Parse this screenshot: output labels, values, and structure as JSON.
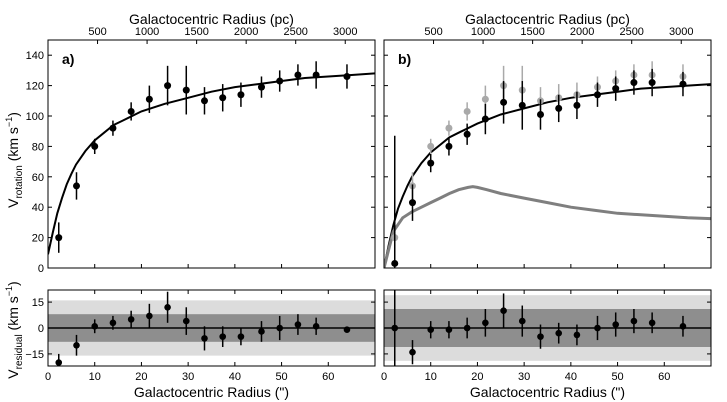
{
  "chart_data": [
    {
      "panel": "a",
      "type": "scatter",
      "panel_label": "a)",
      "top_axis_label": "Galactocentric Radius (pc)",
      "top_ticks": [
        500,
        1000,
        1500,
        2000,
        2500,
        3000
      ],
      "top_tick_labels": [
        "500",
        "1000",
        "1500",
        "2000",
        "2500",
        "3000"
      ],
      "xlabel": "Galactocentric Radius (\")",
      "x_ticks": [
        0,
        10,
        20,
        30,
        40,
        50,
        60
      ],
      "x_tick_labels": [
        "0",
        "10",
        "20",
        "30",
        "40",
        "50",
        "60"
      ],
      "xlim": [
        0,
        70
      ],
      "ylabel_main": "V",
      "ylabel_main_sub": "rotation",
      "ylabel_main_unit": " (km s",
      "ylabel_main_exp": "−1",
      "ylabel_main_close": ")",
      "ylim": [
        0,
        150
      ],
      "y_ticks": [
        0,
        20,
        40,
        60,
        80,
        100,
        120,
        140
      ],
      "y_tick_labels": [
        "0",
        "20",
        "40",
        "60",
        "80",
        "100",
        "120",
        "140"
      ],
      "rotation_series": [
        {
          "name": "observed",
          "color": "#000000",
          "x": [
            2.3,
            6.1,
            10.0,
            13.9,
            17.8,
            21.7,
            25.6,
            29.6,
            33.5,
            37.4,
            41.3,
            45.7,
            49.6,
            53.5,
            57.4,
            64.0
          ],
          "y": [
            20,
            54,
            80,
            92,
            103,
            111,
            120,
            117,
            110,
            112,
            114,
            119,
            123,
            127,
            127,
            126
          ],
          "yerr": [
            10,
            9,
            5,
            5,
            6,
            9,
            13,
            16,
            9,
            9,
            8,
            7,
            7,
            7,
            9,
            8
          ]
        }
      ],
      "model_curves": [
        {
          "name": "fit",
          "color": "#000000",
          "x": [
            0,
            1,
            2,
            3,
            4,
            5,
            6,
            8,
            10,
            12,
            14,
            16,
            20,
            25,
            30,
            35,
            40,
            45,
            50,
            55,
            60,
            65,
            70
          ],
          "y": [
            9,
            23,
            36,
            46,
            55,
            62,
            68,
            77,
            84,
            89,
            94,
            97,
            103,
            108,
            112,
            116,
            119,
            121,
            123,
            125,
            126,
            127,
            128
          ]
        }
      ],
      "residual": {
        "ylabel": "V",
        "ylabel_sub": "residual",
        "ylabel_unit": " (km s",
        "ylabel_exp": "−1",
        "ylabel_close": ")",
        "ylim": [
          -22,
          22
        ],
        "y_ticks": [
          -15,
          0,
          15
        ],
        "y_tick_labels": [
          "−15",
          "0",
          "15"
        ],
        "outer_band": [
          -16,
          16
        ],
        "inner_band": [
          -8,
          8
        ],
        "outer_band_color": "#dcdcdc",
        "inner_band_color": "#8e8e8e",
        "x": [
          2.3,
          6.1,
          10.0,
          13.9,
          17.8,
          21.7,
          25.6,
          29.6,
          33.5,
          37.4,
          41.3,
          45.7,
          49.6,
          53.5,
          57.4,
          64.0
        ],
        "y": [
          -20,
          -10,
          1,
          3,
          5,
          7,
          12,
          4,
          -6,
          -5,
          -5,
          -2,
          0,
          2,
          1,
          -1
        ],
        "yerr": [
          5,
          6,
          4,
          4,
          5,
          7,
          9,
          8,
          7,
          6,
          5,
          6,
          7,
          6,
          5,
          1
        ]
      }
    },
    {
      "panel": "b",
      "type": "scatter",
      "panel_label": "b)",
      "top_axis_label": "Galactocentric Radius (pc)",
      "top_ticks": [
        500,
        1000,
        1500,
        2000,
        2500,
        3000
      ],
      "top_tick_labels": [
        "500",
        "1000",
        "1500",
        "2000",
        "2500",
        "3000"
      ],
      "xlabel": "Galactocentric Radius (\")",
      "x_ticks": [
        0,
        10,
        20,
        30,
        40,
        50,
        60
      ],
      "x_tick_labels": [
        "0",
        "10",
        "20",
        "30",
        "40",
        "50",
        "60"
      ],
      "xlim": [
        0,
        70
      ],
      "ylim": [
        0,
        150
      ],
      "y_ticks": [
        0,
        20,
        40,
        60,
        80,
        100,
        120,
        140
      ],
      "rotation_series": [
        {
          "name": "original (grey)",
          "color": "#a9a9a9",
          "x": [
            2.3,
            6.1,
            10.0,
            13.9,
            17.8,
            21.7,
            25.6,
            29.6,
            33.5,
            37.4,
            41.3,
            45.7,
            49.6,
            53.5,
            57.4,
            64.0
          ],
          "y": [
            20,
            54,
            80,
            92,
            103,
            111,
            120,
            117,
            110,
            112,
            114,
            119,
            123,
            127,
            127,
            126
          ],
          "yerr": [
            10,
            9,
            5,
            5,
            6,
            9,
            13,
            16,
            9,
            9,
            8,
            7,
            7,
            7,
            9,
            8
          ]
        },
        {
          "name": "corrected",
          "color": "#000000",
          "x": [
            2.3,
            6.1,
            10.0,
            13.9,
            17.8,
            21.7,
            25.6,
            29.6,
            33.5,
            37.4,
            41.3,
            45.7,
            49.6,
            53.5,
            57.4,
            64.0
          ],
          "y": [
            3,
            43,
            69,
            80,
            88,
            98,
            109,
            107,
            101,
            105,
            107,
            114,
            118,
            122,
            122,
            121
          ],
          "yerr": [
            84,
            12,
            6,
            6,
            7,
            10,
            14,
            16,
            10,
            9,
            9,
            8,
            8,
            8,
            9,
            8
          ]
        }
      ],
      "model_curves": [
        {
          "name": "fit",
          "color": "#000000",
          "x": [
            0,
            1,
            2,
            3,
            4,
            5,
            6,
            8,
            10,
            12,
            14,
            16,
            20,
            25,
            30,
            35,
            40,
            45,
            50,
            55,
            60,
            65,
            70
          ],
          "y": [
            0,
            15,
            28,
            39,
            47,
            54,
            60,
            69,
            76,
            81,
            86,
            89,
            95,
            101,
            105,
            109,
            112,
            114,
            116,
            118,
            119,
            120,
            121
          ]
        },
        {
          "name": "component",
          "color": "#7f7f7f",
          "x": [
            0,
            2,
            4,
            6,
            8,
            10,
            12,
            14,
            16,
            18,
            19,
            20,
            22,
            25,
            30,
            35,
            40,
            45,
            50,
            55,
            60,
            65,
            70
          ],
          "y": [
            0,
            24,
            33,
            37,
            40,
            43,
            46,
            49,
            51.5,
            53,
            53.5,
            53,
            51.5,
            49,
            46,
            43,
            40,
            38,
            36,
            35,
            34,
            33,
            32.5
          ]
        }
      ],
      "residual": {
        "ylim": [
          -22,
          22
        ],
        "y_ticks": [
          -15,
          0,
          15
        ],
        "outer_band": [
          -19,
          19
        ],
        "inner_band": [
          -11,
          11
        ],
        "outer_band_color": "#dcdcdc",
        "inner_band_color": "#8e8e8e",
        "x": [
          2.3,
          6.1,
          10.0,
          13.9,
          17.8,
          21.7,
          25.6,
          29.6,
          33.5,
          37.4,
          41.3,
          45.7,
          49.6,
          53.5,
          57.4,
          64.0
        ],
        "y": [
          0,
          -14,
          -1,
          -1,
          0,
          3,
          10,
          4,
          -5,
          -3,
          -4,
          0,
          2,
          4,
          3,
          1
        ],
        "yerr": [
          30,
          7,
          5,
          5,
          6,
          8,
          10,
          9,
          7,
          6,
          6,
          7,
          7,
          7,
          6,
          6
        ]
      }
    }
  ]
}
